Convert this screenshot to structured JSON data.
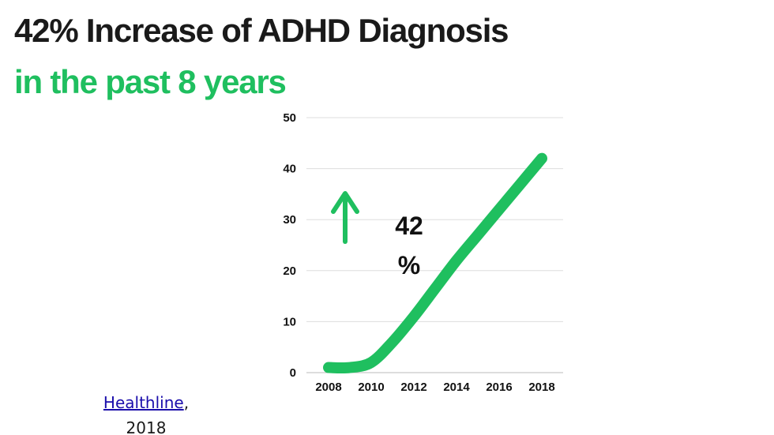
{
  "header": {
    "title": "42% Increase of ADHD Diagnosis",
    "subtitle": "in the past 8 years"
  },
  "colors": {
    "accent": "#1fbf5f",
    "title": "#1a1a1a",
    "grid": "#dddddd",
    "link": "#1a0dab"
  },
  "source": {
    "link_text": "Healthline",
    "suffix": ",",
    "year": "2018"
  },
  "chart_data": {
    "type": "line",
    "x": [
      2008,
      2009,
      2010,
      2011,
      2012,
      2013,
      2014,
      2015,
      2016,
      2017,
      2018
    ],
    "series": [
      {
        "values": [
          1,
          1,
          2,
          6,
          11,
          16.5,
          22,
          27,
          32,
          37,
          42
        ]
      }
    ],
    "x_ticks": [
      "2008",
      "2010",
      "2012",
      "2014",
      "2016",
      "2018"
    ],
    "y_ticks": [
      "0",
      "10",
      "20",
      "30",
      "40",
      "50"
    ],
    "xlim": [
      2008,
      2018
    ],
    "ylim": [
      0,
      50
    ],
    "grid": true,
    "annotation": {
      "line1": "42",
      "line2": "%"
    },
    "arrow": "up-arrow-icon"
  }
}
